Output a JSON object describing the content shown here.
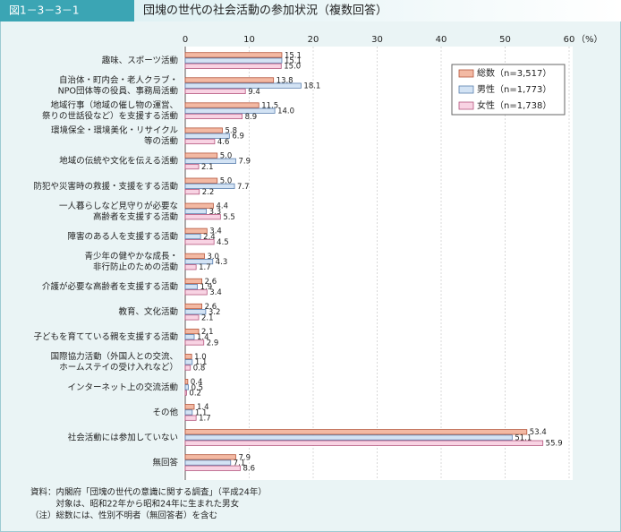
{
  "header": {
    "figure": "図1－3－3－1",
    "title": "団塊の世代の社会活動の参加状況（複数回答）"
  },
  "chart_data": {
    "type": "hbar",
    "categories": [
      [
        "趣味、スポーツ活動"
      ],
      [
        "自治体・町内会・老人クラブ・",
        "NPO団体等の役員、事務局活動"
      ],
      [
        "地域行事（地域の催し物の運営、",
        "祭りの世話役など）を支援する活動"
      ],
      [
        "環境保全・環境美化・リサイクル",
        "等の活動"
      ],
      [
        "地域の伝統や文化を伝える活動"
      ],
      [
        "防犯や災害時の救援・支援をする活動"
      ],
      [
        "一人暮らしなど見守りが必要な",
        "高齢者を支援する活動"
      ],
      [
        "障害のある人を支援する活動"
      ],
      [
        "青少年の健やかな成長・",
        "非行防止のための活動"
      ],
      [
        "介護が必要な高齢者を支援する活動"
      ],
      [
        "教育、文化活動"
      ],
      [
        "子どもを育てている親を支援する活動"
      ],
      [
        "国際協力活動（外国人との交流、",
        "ホームステイの受け入れなど）"
      ],
      [
        "インターネット上の交流活動"
      ],
      [
        "その他"
      ],
      [
        "社会活動には参加していない"
      ],
      [
        "無回答"
      ]
    ],
    "series": [
      {
        "name": "総数（n=3,517）",
        "color": "#f3b9a3",
        "stroke": "#b5563c",
        "values": [
          15.1,
          13.8,
          11.5,
          5.8,
          5.0,
          5.0,
          4.4,
          3.4,
          3.0,
          2.6,
          2.6,
          2.1,
          1.0,
          0.4,
          1.4,
          53.4,
          7.9
        ],
        "value_labels": [
          "15.1",
          "13.8",
          "11.5",
          "5.8",
          "5.0",
          "5.0",
          "4.4",
          "3.4",
          "3.0",
          "2.6",
          "2.6",
          "2.1",
          "1.0",
          "0.4",
          "1.4",
          "53.4",
          "7.9"
        ]
      },
      {
        "name": "男性（n=1,773）",
        "color": "#d3e3f4",
        "stroke": "#5a7fae",
        "values": [
          15.1,
          18.1,
          14.0,
          6.9,
          7.9,
          7.7,
          3.3,
          2.4,
          4.3,
          1.9,
          3.2,
          1.4,
          1.1,
          0.5,
          1.1,
          51.1,
          7.1
        ],
        "value_labels": [
          "15.1",
          "18.1",
          "14.0",
          "6.9",
          "7.9",
          "7.7",
          "3.3",
          "2.4",
          "4.3",
          "1.9",
          "3.2",
          "1.4",
          "1.1",
          "0.5",
          "1.1",
          "51.1",
          "7.1"
        ]
      },
      {
        "name": "女性（n=1,738）",
        "color": "#f8d3e3",
        "stroke": "#b4567e",
        "values": [
          15.0,
          9.4,
          8.9,
          4.6,
          2.1,
          2.2,
          5.5,
          4.5,
          1.7,
          3.4,
          2.1,
          2.9,
          0.8,
          0.2,
          1.7,
          55.9,
          8.6
        ],
        "value_labels": [
          "15.0",
          "9.4",
          "8.9",
          "4.6",
          "2.1",
          "2.2",
          "5.5",
          "4.5",
          "1.7",
          "3.4",
          "2.1",
          "2.9",
          "0.8",
          "0.2",
          "1.7",
          "55.9",
          "8.6"
        ]
      }
    ],
    "xlim": [
      0,
      60
    ],
    "xticks": [
      0,
      10,
      20,
      30,
      40,
      50,
      60
    ],
    "unit": "（%）",
    "grid": true,
    "legend": "top-right"
  },
  "notes": [
    "資料：内閣府「団塊の世代の意識に関する調査」（平成24年）",
    "　　　対象は、昭和22年から昭和24年に生まれた男女",
    "（注）総数には、性別不明者（無回答者）を含む"
  ]
}
